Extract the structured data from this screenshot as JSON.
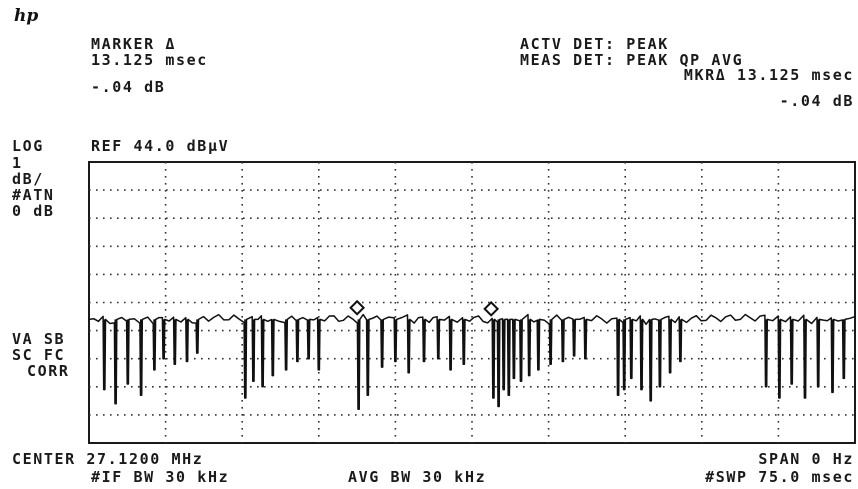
{
  "logo": "hp",
  "marker": {
    "title": "MARKER Δ",
    "time": "13.125 msec",
    "level": "-.04 dB"
  },
  "detector": {
    "actv": "ACTV DET: PEAK",
    "meas": "MEAS DET: PEAK QP AVG",
    "mkr_time": "MKRΔ 13.125 msec",
    "mkr_level": "-.04 dB"
  },
  "scale": {
    "log": "LOG",
    "ref": "REF 44.0 dBμV",
    "div_1": "1",
    "div_2": "dB/",
    "atn_1": "#ATN",
    "atn_2": "0 dB"
  },
  "side_labels": {
    "va_sb": "VA SB",
    "sc_fc": "SC FC",
    "corr": "CORR"
  },
  "footer": {
    "center": "CENTER 27.1200 MHz",
    "span": "SPAN 0 Hz",
    "if_bw": "#IF BW 30 kHz",
    "avg_bw": "AVG BW 30 kHz",
    "swp": "#SWP 75.0 msec"
  },
  "chart_data": {
    "type": "line",
    "title": "",
    "xlabel": "",
    "ylabel": "",
    "ref_level_dBuV": 44.0,
    "scale_dB_per_div": 1,
    "x_unit": "msec",
    "xlim": [
      0,
      75.0
    ],
    "ylim": [
      34.0,
      44.0
    ],
    "grid": true,
    "baseline_level_dBuV": 38.4,
    "dips": [
      {
        "t": 1.5,
        "level": 35.9
      },
      {
        "t": 2.6,
        "level": 35.4
      },
      {
        "t": 3.8,
        "level": 36.1
      },
      {
        "t": 5.1,
        "level": 35.7
      },
      {
        "t": 6.4,
        "level": 36.6
      },
      {
        "t": 7.3,
        "level": 37.0
      },
      {
        "t": 8.4,
        "level": 36.8
      },
      {
        "t": 9.6,
        "level": 36.9
      },
      {
        "t": 10.6,
        "level": 37.2
      },
      {
        "t": 15.3,
        "level": 35.6
      },
      {
        "t": 16.1,
        "level": 36.2
      },
      {
        "t": 17.0,
        "level": 36.0
      },
      {
        "t": 18.0,
        "level": 36.4
      },
      {
        "t": 19.3,
        "level": 36.6
      },
      {
        "t": 20.4,
        "level": 36.9
      },
      {
        "t": 21.5,
        "level": 37.0
      },
      {
        "t": 22.5,
        "level": 36.6
      },
      {
        "t": 26.4,
        "level": 35.2
      },
      {
        "t": 27.3,
        "level": 35.7
      },
      {
        "t": 28.7,
        "level": 36.7
      },
      {
        "t": 30.0,
        "level": 36.9
      },
      {
        "t": 31.3,
        "level": 36.5
      },
      {
        "t": 32.8,
        "level": 36.9
      },
      {
        "t": 34.2,
        "level": 37.0
      },
      {
        "t": 35.4,
        "level": 36.6
      },
      {
        "t": 36.7,
        "level": 36.8
      },
      {
        "t": 39.6,
        "level": 35.6
      },
      {
        "t": 40.1,
        "level": 35.3
      },
      {
        "t": 40.6,
        "level": 35.9
      },
      {
        "t": 41.1,
        "level": 35.7
      },
      {
        "t": 41.6,
        "level": 36.3
      },
      {
        "t": 42.3,
        "level": 36.2
      },
      {
        "t": 43.1,
        "level": 36.4
      },
      {
        "t": 44.0,
        "level": 36.6
      },
      {
        "t": 45.2,
        "level": 36.8
      },
      {
        "t": 46.4,
        "level": 36.9
      },
      {
        "t": 47.5,
        "level": 37.1
      },
      {
        "t": 48.6,
        "level": 37.0
      },
      {
        "t": 51.8,
        "level": 35.7
      },
      {
        "t": 52.4,
        "level": 35.9
      },
      {
        "t": 53.1,
        "level": 36.3
      },
      {
        "t": 54.1,
        "level": 35.9
      },
      {
        "t": 55.0,
        "level": 35.5
      },
      {
        "t": 55.9,
        "level": 36.0
      },
      {
        "t": 56.9,
        "level": 36.5
      },
      {
        "t": 57.9,
        "level": 36.9
      },
      {
        "t": 66.3,
        "level": 36.0
      },
      {
        "t": 67.6,
        "level": 35.6
      },
      {
        "t": 68.8,
        "level": 36.1
      },
      {
        "t": 70.1,
        "level": 35.6
      },
      {
        "t": 71.4,
        "level": 36.0
      },
      {
        "t": 72.8,
        "level": 35.8
      },
      {
        "t": 73.9,
        "level": 36.3
      }
    ],
    "markers": [
      {
        "t": 26.25,
        "level": 38.6
      },
      {
        "t": 39.375,
        "level": 38.56
      }
    ]
  }
}
